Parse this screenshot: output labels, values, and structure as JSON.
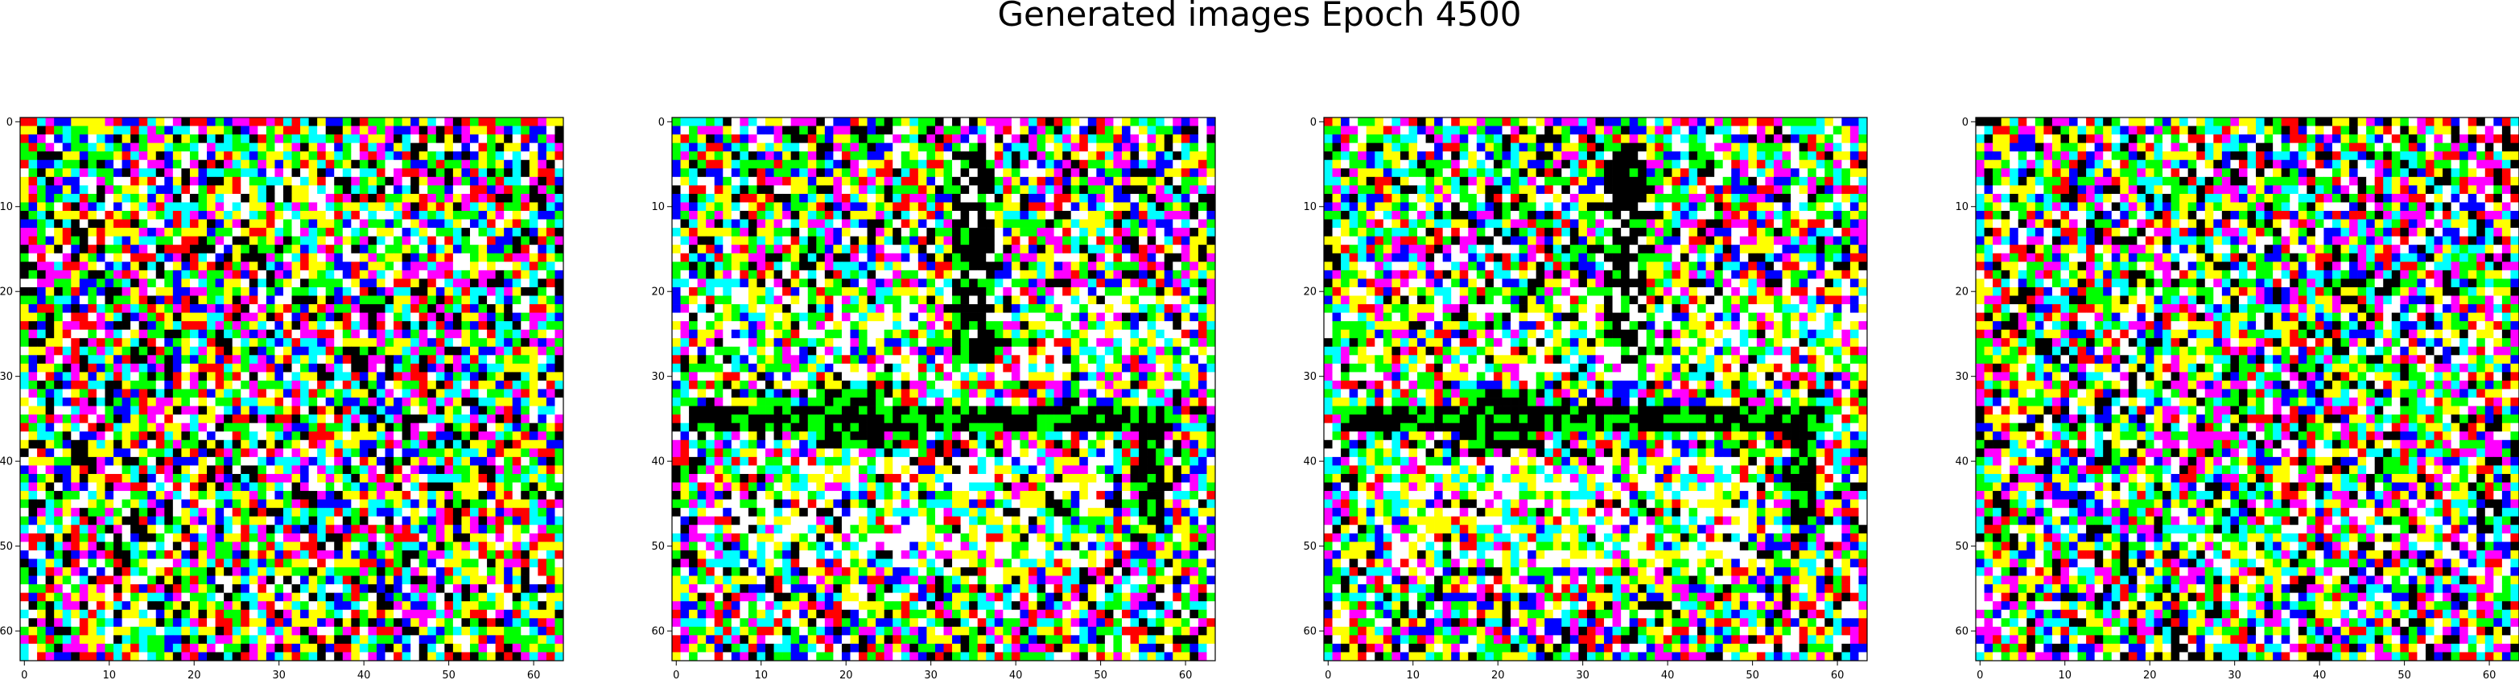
{
  "figure": {
    "title": "Generated images Epoch 4500"
  },
  "chart_data": {
    "type": "heatmap",
    "title": "Generated images Epoch 4500",
    "panel_count": 4,
    "grid_size": [
      64,
      64
    ],
    "palette": [
      "#000000",
      "#ff0000",
      "#00ff00",
      "#0000ff",
      "#ffff00",
      "#ff00ff",
      "#00ffff",
      "#ffffff"
    ],
    "x_ticks": [
      0,
      10,
      20,
      30,
      40,
      50,
      60
    ],
    "y_ticks": [
      0,
      10,
      20,
      30,
      40,
      50,
      60
    ],
    "xlim": [
      -0.5,
      63.5
    ],
    "ylim": [
      63.5,
      -0.5
    ],
    "grid": false,
    "panels": [
      {
        "name": "",
        "pattern": "noise"
      },
      {
        "name": "",
        "pattern": "structured"
      },
      {
        "name": "",
        "pattern": "structured"
      },
      {
        "name": "",
        "pattern": "noise"
      }
    ]
  }
}
